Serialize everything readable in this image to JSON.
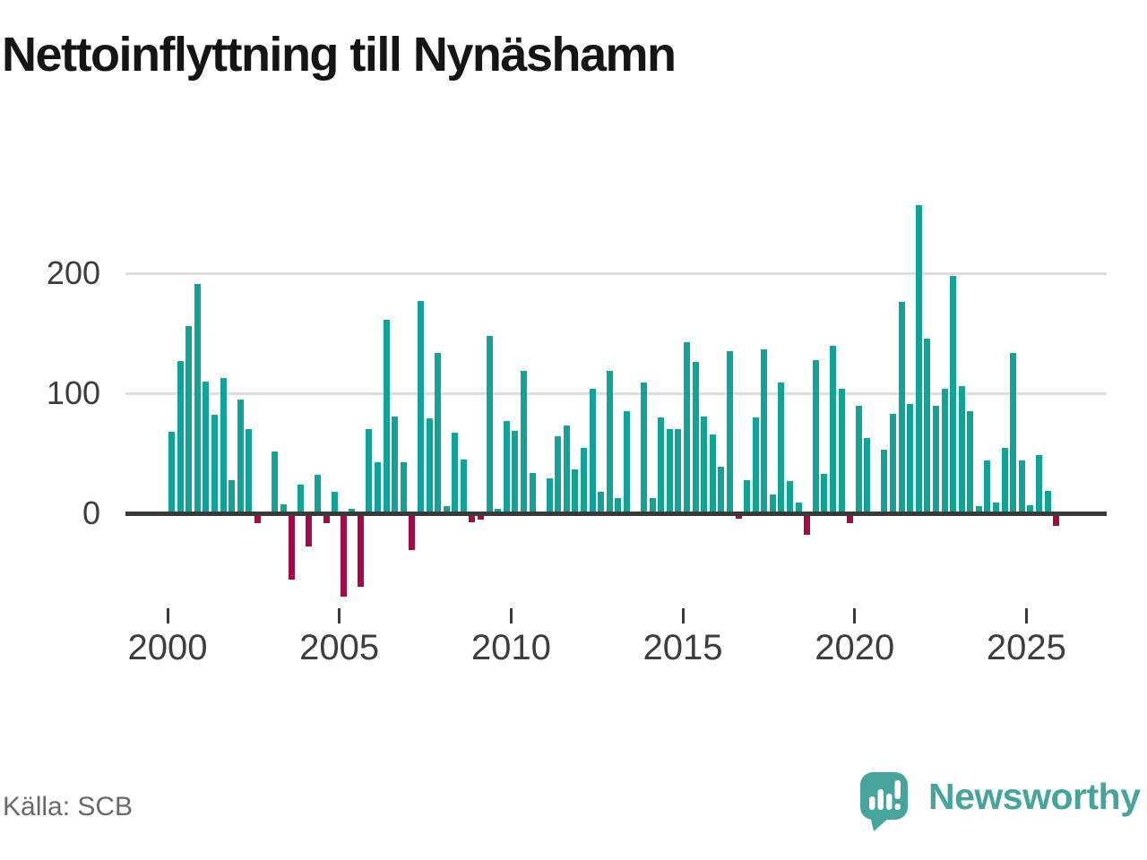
{
  "title": "Nettoinflyttning till Nynäshamn",
  "source": "Källa: SCB",
  "logo": {
    "text": "Newsworthy"
  },
  "colors": {
    "positive": "#12a296",
    "negative": "#a10c45",
    "grid": "#dedede",
    "axis": "#3a3a3a",
    "tick_label": "#3d3d3d",
    "title": "#151515",
    "source_text": "#696969",
    "brand": "#47a49c",
    "background": "#ffffff"
  },
  "chart_data": {
    "type": "bar",
    "title": "Nettoinflyttning till Nynäshamn",
    "xlabel": "",
    "ylabel": "",
    "frequency": "quarterly",
    "start_period": "2000 Q1",
    "end_period": "2025 Q4",
    "grid": "horizontal",
    "legend": "none",
    "yticks": [
      0,
      100,
      200
    ],
    "xticks": [
      2000,
      2005,
      2010,
      2015,
      2020,
      2025
    ],
    "ylim": [
      -90,
      280
    ],
    "values_by_year": {
      "2000": [
        68,
        127,
        156,
        191
      ],
      "2001": [
        110,
        82,
        113,
        28
      ],
      "2002": [
        95,
        70,
        -8,
        0
      ],
      "2003": [
        52,
        8,
        -55,
        24
      ],
      "2004": [
        -27,
        32,
        -8,
        18
      ],
      "2005": [
        -69,
        4,
        -61,
        70
      ],
      "2006": [
        43,
        161,
        81,
        43
      ],
      "2007": [
        -30,
        177,
        79,
        134
      ],
      "2008": [
        6,
        67,
        45,
        -7
      ],
      "2009": [
        -5,
        148,
        4,
        77
      ],
      "2010": [
        69,
        119,
        34,
        0
      ],
      "2011": [
        29,
        64,
        73,
        37
      ],
      "2012": [
        55,
        104,
        18,
        119
      ],
      "2013": [
        13,
        85,
        0,
        109
      ],
      "2014": [
        13,
        80,
        70,
        70
      ],
      "2015": [
        143,
        126,
        81,
        66
      ],
      "2016": [
        39,
        135,
        -4,
        28
      ],
      "2017": [
        80,
        137,
        16,
        109
      ],
      "2018": [
        27,
        9,
        -18,
        128
      ],
      "2019": [
        33,
        140,
        104,
        -8
      ],
      "2020": [
        90,
        63,
        0,
        53
      ],
      "2021": [
        83,
        176,
        91,
        257
      ],
      "2022": [
        146,
        90,
        104,
        198
      ],
      "2023": [
        106,
        85,
        6,
        44
      ],
      "2024": [
        9,
        55,
        134,
        44
      ],
      "2025": [
        7,
        49,
        19,
        -10
      ]
    }
  }
}
